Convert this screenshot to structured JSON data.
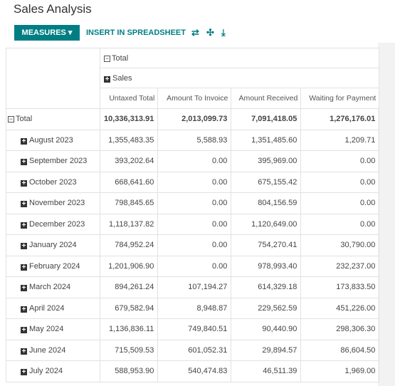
{
  "header": {
    "title": "Sales Analysis",
    "measures_button": "MEASURES",
    "insert_button": "INSERT IN SPREADSHEET"
  },
  "table": {
    "column_header": "Total",
    "column_group": "Sales",
    "measures": [
      "Untaxed Total",
      "Amount To Invoice",
      "Amount Received",
      "Waiting for Payment"
    ],
    "total_row": {
      "label": "Total",
      "values": [
        "10,336,313.91",
        "2,013,099.73",
        "7,091,418.05",
        "1,276,176.01"
      ]
    },
    "rows": [
      {
        "label": "August 2023",
        "values": [
          "1,355,483.35",
          "5,588.93",
          "1,351,485.60",
          "1,209.71"
        ]
      },
      {
        "label": "September 2023",
        "values": [
          "393,202.64",
          "0.00",
          "395,969.00",
          "0.00"
        ]
      },
      {
        "label": "October 2023",
        "values": [
          "668,641.60",
          "0.00",
          "675,155.42",
          "0.00"
        ]
      },
      {
        "label": "November 2023",
        "values": [
          "798,845.65",
          "0.00",
          "804,156.59",
          "0.00"
        ]
      },
      {
        "label": "December 2023",
        "values": [
          "1,118,137.82",
          "0.00",
          "1,120,649.00",
          "0.00"
        ]
      },
      {
        "label": "January 2024",
        "values": [
          "784,952.24",
          "0.00",
          "754,270.41",
          "30,790.00"
        ]
      },
      {
        "label": "February 2024",
        "values": [
          "1,201,906.90",
          "0.00",
          "978,993.40",
          "232,237.00"
        ]
      },
      {
        "label": "March 2024",
        "values": [
          "894,261.24",
          "107,194.27",
          "614,329.18",
          "173,833.50"
        ]
      },
      {
        "label": "April 2024",
        "values": [
          "679,582.94",
          "8,948.87",
          "229,562.59",
          "451,226.00"
        ]
      },
      {
        "label": "May 2024",
        "values": [
          "1,136,836.11",
          "749,840.51",
          "90,440.90",
          "298,306.30"
        ]
      },
      {
        "label": "June 2024",
        "values": [
          "715,509.53",
          "601,052.31",
          "29,894.57",
          "86,604.50"
        ]
      },
      {
        "label": "July 2024",
        "values": [
          "588,953.90",
          "540,474.83",
          "46,511.39",
          "1,969.00"
        ]
      }
    ]
  }
}
